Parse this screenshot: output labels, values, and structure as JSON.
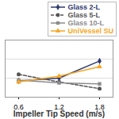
{
  "chart_data": {
    "type": "line",
    "x_label": "Impeller Tip Speed (m/s)",
    "x": [
      0.6,
      1.2,
      1.8
    ],
    "xlim": [
      0.4,
      2.0
    ],
    "xticks": [
      0.6,
      1.2,
      1.8
    ],
    "ylim": [
      0,
      3
    ],
    "yticks": [
      0,
      1,
      2,
      3
    ],
    "grid": true,
    "tick_labels": "x",
    "legend": "top-right",
    "series": [
      {
        "name": "Glass 2-L",
        "color": "#2e3a6e",
        "marker": "diamond",
        "line_style": "solid",
        "values": [
          0.85,
          1.0,
          1.9
        ]
      },
      {
        "name": "Glass 5-L",
        "color": "#555555",
        "marker": "circle",
        "line_style": "dashed",
        "values": [
          1.2,
          0.8,
          0.45
        ]
      },
      {
        "name": "Glass 10-L",
        "color": "#8c8c8c",
        "marker": "square",
        "line_style": "solid",
        "values": [
          0.9,
          0.75,
          0.7
        ]
      },
      {
        "name": "UniVessel SU",
        "color": "#f5a623",
        "marker": "triangle",
        "line_style": "solid",
        "values": [
          0.8,
          1.1,
          1.6
        ]
      }
    ]
  }
}
